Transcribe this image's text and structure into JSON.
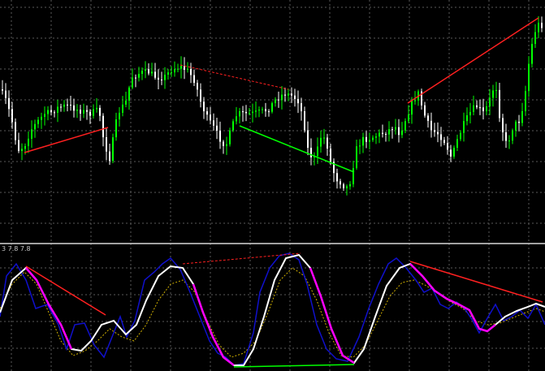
{
  "window": {
    "background": "#000000",
    "grid_color": "#5a5a5a",
    "separator_color": "#d8d8d8"
  },
  "indicator": {
    "label": "3 7.8 7.8"
  },
  "colors": {
    "bull": "#00ff00",
    "bear": "#ffffff",
    "bear_divergence": "#ff2020",
    "bull_divergence": "#00ff00",
    "fast_line": "#ffffff",
    "raw_line": "#1010cc",
    "signal_line": "#d0b000",
    "highlight_line": "#ff00ff"
  },
  "icons": [
    "price-divergence-line",
    "indicator-divergence-line"
  ]
}
